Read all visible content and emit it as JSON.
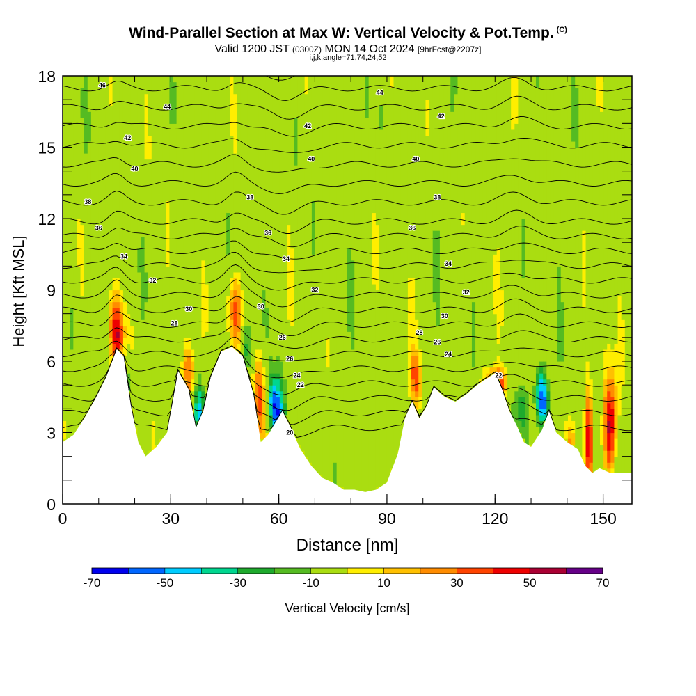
{
  "header": {
    "title": "Wind-Parallel Section at Max W: Vertical Velocity & Pot.Temp.",
    "copyright": "(C)",
    "valid_prefix": "Valid 1200 JST",
    "valid_utc": "(0300Z)",
    "valid_date": "MON 14 Oct 2024",
    "forecast": "[9hrFcst@2207z]",
    "indices": "i,j,k,angle=71,74,24,52"
  },
  "chart_data": {
    "type": "heatmap",
    "xlabel": "Distance [nm]",
    "ylabel": "Height [Kft MSL]",
    "xlim": [
      0,
      158
    ],
    "ylim": [
      0,
      18
    ],
    "x_ticks": [
      0,
      30,
      60,
      90,
      120,
      150
    ],
    "y_ticks": [
      0,
      3,
      6,
      9,
      12,
      15,
      18
    ],
    "colorbar": {
      "label": "Vertical Velocity [cm/s]",
      "tick_labels": [
        "-70",
        "-50",
        "-30",
        "-10",
        "10",
        "30",
        "50",
        "70"
      ],
      "bin_edges": [
        -70,
        -60,
        -50,
        -40,
        -30,
        -20,
        -10,
        10,
        20,
        30,
        40,
        50,
        60,
        70
      ],
      "colors": [
        "#0000ee",
        "#0066ff",
        "#00ccff",
        "#00d68f",
        "#1faa2d",
        "#55bb22",
        "#aadd11",
        "#ffee00",
        "#ffc000",
        "#ff8c00",
        "#ff4400",
        "#ee0000",
        "#aa0033",
        "#660088"
      ]
    },
    "terrain_kft": {
      "x": [
        0,
        3,
        6,
        9,
        12,
        15,
        17,
        19,
        21,
        23,
        26,
        29,
        32,
        35,
        37,
        39,
        41,
        44,
        47,
        50,
        53,
        55,
        57,
        59,
        61,
        63,
        66,
        69,
        72,
        75,
        78,
        81,
        84,
        87,
        90,
        93,
        95,
        97,
        99,
        101,
        103,
        106,
        109,
        112,
        115,
        118,
        120,
        122,
        124,
        126,
        128,
        130,
        133,
        135,
        137,
        140,
        143,
        145,
        147,
        149,
        152,
        155,
        158
      ],
      "y": [
        2.6,
        2.9,
        3.6,
        4.4,
        5.3,
        6.5,
        6.2,
        4.1,
        2.6,
        2.0,
        2.4,
        3.0,
        5.6,
        4.8,
        3.2,
        3.9,
        5.3,
        6.4,
        6.6,
        6.2,
        4.6,
        2.6,
        2.9,
        3.4,
        3.9,
        3.3,
        2.3,
        1.6,
        1.1,
        0.9,
        0.6,
        0.6,
        0.5,
        0.6,
        0.9,
        2.1,
        3.6,
        4.3,
        3.6,
        4.1,
        4.9,
        4.5,
        4.3,
        4.6,
        5.0,
        5.3,
        5.5,
        4.8,
        3.9,
        3.3,
        2.6,
        2.4,
        3.1,
        3.9,
        3.0,
        2.6,
        2.3,
        1.6,
        1.3,
        1.5,
        1.3,
        1.3,
        1.3
      ]
    },
    "theta_contour_labels": [
      {
        "value": "46",
        "x": 11,
        "y": 17.6
      },
      {
        "value": "44",
        "x": 29,
        "y": 16.7
      },
      {
        "value": "44",
        "x": 88,
        "y": 17.3
      },
      {
        "value": "42",
        "x": 18,
        "y": 15.4
      },
      {
        "value": "42",
        "x": 68,
        "y": 15.9
      },
      {
        "value": "42",
        "x": 105,
        "y": 16.3
      },
      {
        "value": "40",
        "x": 20,
        "y": 14.1
      },
      {
        "value": "40",
        "x": 69,
        "y": 14.5
      },
      {
        "value": "40",
        "x": 98,
        "y": 14.5
      },
      {
        "value": "38",
        "x": 7,
        "y": 12.7
      },
      {
        "value": "38",
        "x": 52,
        "y": 12.9
      },
      {
        "value": "38",
        "x": 104,
        "y": 12.9
      },
      {
        "value": "36",
        "x": 10,
        "y": 11.6
      },
      {
        "value": "36",
        "x": 57,
        "y": 11.4
      },
      {
        "value": "36",
        "x": 97,
        "y": 11.6
      },
      {
        "value": "34",
        "x": 17,
        "y": 10.4
      },
      {
        "value": "34",
        "x": 62,
        "y": 10.3
      },
      {
        "value": "34",
        "x": 107,
        "y": 10.1
      },
      {
        "value": "32",
        "x": 25,
        "y": 9.4
      },
      {
        "value": "32",
        "x": 70,
        "y": 9.0
      },
      {
        "value": "32",
        "x": 112,
        "y": 8.9
      },
      {
        "value": "30",
        "x": 55,
        "y": 8.3
      },
      {
        "value": "30",
        "x": 106,
        "y": 7.9
      },
      {
        "value": "30",
        "x": 35,
        "y": 8.2
      },
      {
        "value": "28",
        "x": 31,
        "y": 7.6
      },
      {
        "value": "28",
        "x": 99,
        "y": 7.2
      },
      {
        "value": "26",
        "x": 61,
        "y": 7.0
      },
      {
        "value": "26",
        "x": 104,
        "y": 6.8
      },
      {
        "value": "26",
        "x": 63,
        "y": 6.1
      },
      {
        "value": "24",
        "x": 65,
        "y": 5.4
      },
      {
        "value": "24",
        "x": 107,
        "y": 6.3
      },
      {
        "value": "22",
        "x": 66,
        "y": 5.0
      },
      {
        "value": "22",
        "x": 121,
        "y": 5.4
      },
      {
        "value": "20",
        "x": 63,
        "y": 3.0
      }
    ]
  }
}
